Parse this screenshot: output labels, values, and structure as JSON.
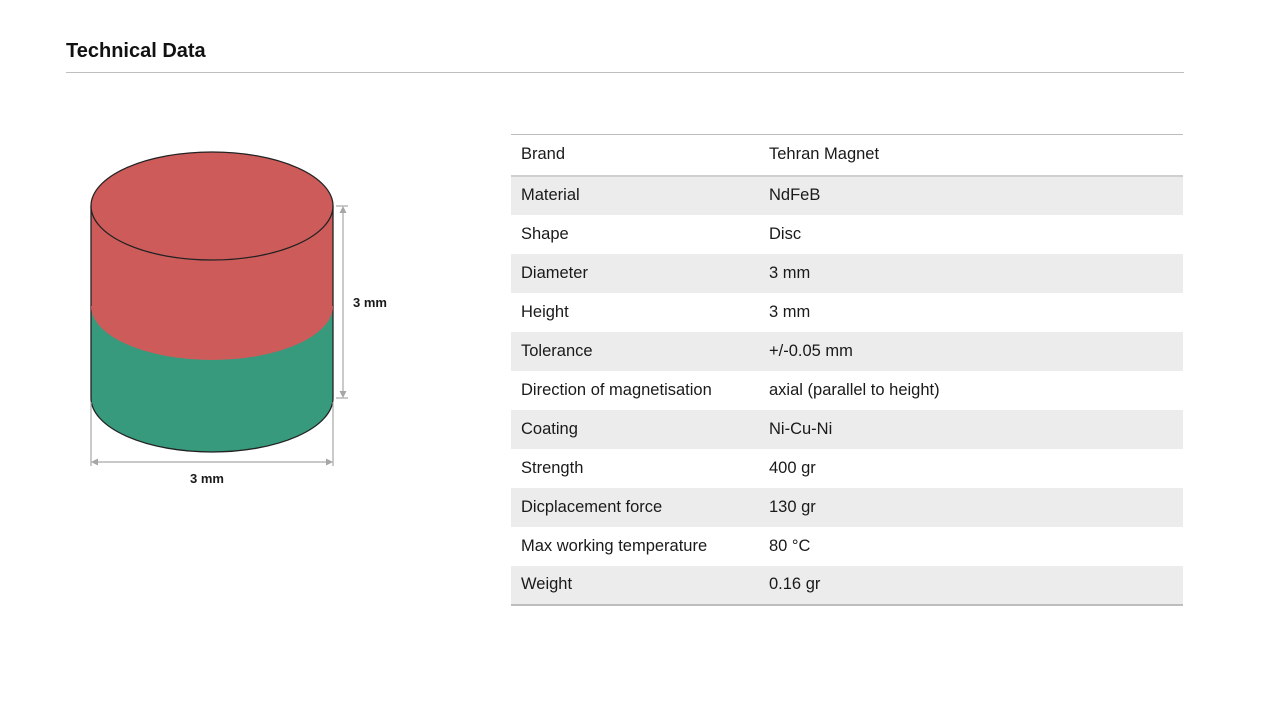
{
  "page": {
    "title": "Technical Data"
  },
  "figure": {
    "height_label": "3 mm",
    "diameter_label": "3 mm",
    "colors": {
      "north_top": "#cd5b5a",
      "south_bottom": "#379a7d",
      "dimension_lines": "#a6a6a6"
    }
  },
  "specs": [
    {
      "key": "Brand",
      "value": "Tehran Magnet"
    },
    {
      "key": "Material",
      "value": "NdFeB"
    },
    {
      "key": "Shape",
      "value": "Disc"
    },
    {
      "key": "Diameter",
      "value": "3 mm"
    },
    {
      "key": "Height",
      "value": "3 mm"
    },
    {
      "key": "Tolerance",
      "value": "+/-0.05 mm"
    },
    {
      "key": "Direction of magnetisation",
      "value": "axial (parallel to height)"
    },
    {
      "key": "Coating",
      "value": "Ni-Cu-Ni"
    },
    {
      "key": "Strength",
      "value": "400 gr"
    },
    {
      "key": "Dicplacement force",
      "value": "130 gr"
    },
    {
      "key": "Max working temperature",
      "value": "80 °C"
    },
    {
      "key": "Weight",
      "value": "0.16 gr"
    }
  ]
}
